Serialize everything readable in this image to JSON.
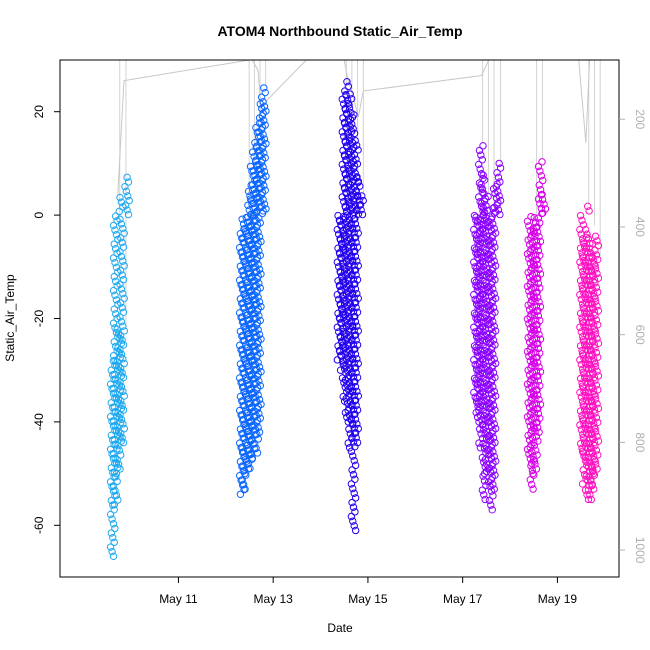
{
  "chart_data": {
    "type": "scatter",
    "title": "ATOM4 Northbound Static_Air_Temp",
    "xlabel": "Date",
    "ylabel": "Static_Air_Temp",
    "x_tick_labels": [
      "May 11",
      "May 13",
      "May 15",
      "May 17",
      "May 19"
    ],
    "y_tick_labels": [
      "-60",
      "-40",
      "-20",
      "0",
      "20"
    ],
    "y_ticks": [
      -60,
      -40,
      -20,
      0,
      20
    ],
    "ylim": [
      -70,
      30
    ],
    "right_axis": {
      "tick_labels": [
        "200",
        "400",
        "600",
        "800",
        "1000"
      ],
      "ticks": [
        200,
        400,
        600,
        800,
        1000
      ],
      "lim": [
        1050,
        90
      ],
      "color": "#b0b0b0"
    },
    "x_ticks_days": [
      11,
      13,
      15,
      17,
      19
    ],
    "xlim_days": [
      8.5,
      20.3
    ],
    "grid": false,
    "series": [
      {
        "color": "#1ea8f0",
        "segments": [
          [
            9.72,
            -66,
            -28
          ],
          [
            9.78,
            -56,
            4
          ],
          [
            9.85,
            -50,
            -22
          ],
          [
            9.92,
            -44,
            8
          ]
        ]
      },
      {
        "color": "#0a66ff",
        "segments": [
          [
            12.45,
            -54,
            -2
          ],
          [
            12.5,
            -53,
            5
          ],
          [
            12.56,
            -50,
            10
          ],
          [
            12.62,
            -49,
            14
          ],
          [
            12.68,
            -47,
            18
          ],
          [
            12.74,
            -46,
            22
          ],
          [
            12.8,
            -42,
            25
          ]
        ]
      },
      {
        "color": "#2200ee",
        "segments": [
          [
            14.5,
            -28,
            24
          ],
          [
            14.56,
            -30,
            26
          ],
          [
            14.62,
            -36,
            24
          ],
          [
            14.68,
            -40,
            20
          ],
          [
            14.74,
            -45,
            15
          ],
          [
            14.8,
            -61,
            8
          ],
          [
            14.86,
            -44,
            4
          ]
        ]
      },
      {
        "color": "#8a00ff",
        "segments": [
          [
            17.38,
            -37,
            14
          ],
          [
            17.44,
            -40,
            8
          ],
          [
            17.5,
            -45,
            4
          ],
          [
            17.56,
            -55,
            0
          ],
          [
            17.62,
            -50,
            2
          ],
          [
            17.7,
            -57,
            6
          ],
          [
            17.76,
            -53,
            10
          ]
        ]
      },
      {
        "color": "#d600e8",
        "segments": [
          [
            18.52,
            -48,
            0
          ],
          [
            18.58,
            -53,
            -2
          ],
          [
            18.64,
            -50,
            11
          ],
          [
            18.7,
            -42,
            4
          ]
        ]
      },
      {
        "color": "#ff10c0",
        "segments": [
          [
            19.62,
            -46,
            2
          ],
          [
            19.68,
            -52,
            -4
          ],
          [
            19.74,
            -55,
            -2
          ],
          [
            19.8,
            -55,
            -5
          ],
          [
            19.86,
            -53,
            -8
          ],
          [
            19.92,
            -50,
            -4
          ]
        ]
      }
    ],
    "profile_lines": {
      "color": "#c8c8c8",
      "polyline": [
        [
          9.72,
          4
        ],
        [
          9.85,
          26
        ],
        [
          12.5,
          40
        ],
        [
          12.56,
          32
        ],
        [
          12.68,
          28
        ],
        [
          12.74,
          21
        ],
        [
          13.7,
          40
        ],
        [
          14.5,
          40
        ],
        [
          14.56,
          27
        ],
        [
          14.8,
          19
        ],
        [
          14.9,
          24
        ],
        [
          17.4,
          27
        ],
        [
          17.55,
          40
        ],
        [
          18.55,
          40
        ],
        [
          19.45,
          40
        ],
        [
          19.6,
          14
        ],
        [
          19.68,
          40
        ]
      ]
    }
  }
}
